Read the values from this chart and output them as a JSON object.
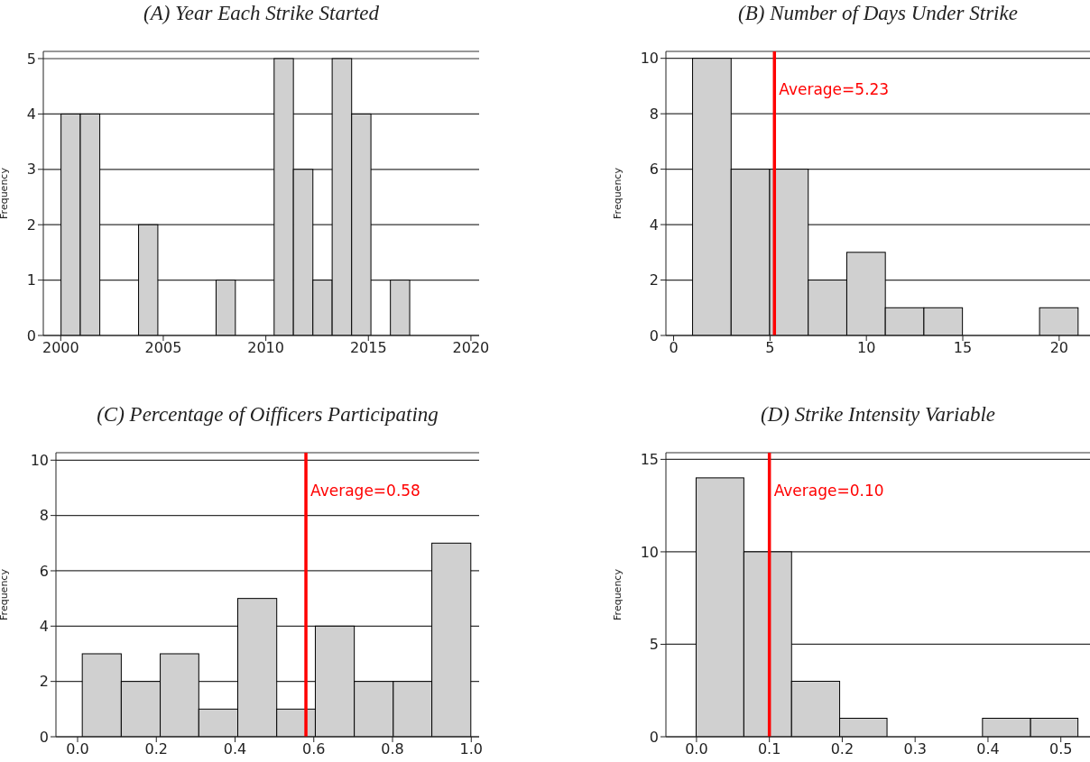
{
  "chart_data": [
    {
      "type": "histogram",
      "title": "(A) Year Each Strike Started",
      "ylabel": "Frequency",
      "color": "#d0d0d0",
      "bins": [
        2000,
        2000.94,
        2001.89,
        2002.83,
        2003.78,
        2004.72,
        2005.67,
        2006.61,
        2007.56,
        2008.5,
        2009.44,
        2010.39,
        2011.33,
        2012.28,
        2013.22,
        2014.17,
        2015.11,
        2016.06,
        2017
      ],
      "values": [
        4,
        4,
        0,
        0,
        2,
        0,
        0,
        0,
        1,
        0,
        0,
        5,
        3,
        1,
        5,
        4,
        0,
        1
      ],
      "xlim": [
        1999.15,
        2020.4
      ],
      "xticks": [
        2000,
        2005,
        2010,
        2015,
        2020
      ],
      "ylim": [
        0,
        5.13
      ],
      "yticks": [
        0,
        1,
        2,
        3,
        4,
        5
      ],
      "grid": "y"
    },
    {
      "type": "histogram",
      "title": "(B) Number of Days Under Strike",
      "ylabel": "Frequency",
      "color": "#d0d0d0",
      "bins": [
        1,
        3,
        5,
        7,
        9,
        11,
        13,
        15,
        17,
        19,
        21
      ],
      "values": [
        10,
        6,
        6,
        2,
        3,
        1,
        1,
        0,
        0,
        1
      ],
      "xlim": [
        -0.4,
        21.6
      ],
      "xticks": [
        0,
        5,
        10,
        15,
        20
      ],
      "ylim": [
        0,
        10.25
      ],
      "yticks": [
        0,
        2,
        4,
        6,
        8,
        10
      ],
      "grid": "y",
      "ref_lines": [
        {
          "axis": "x",
          "value": 5.23,
          "label": "Average=5.23",
          "color": "#ff0000"
        }
      ]
    },
    {
      "type": "histogram",
      "title": "(C) Percentage of Oifficers Participating",
      "ylabel": "Frequency",
      "color": "#d0d0d0",
      "bins": [
        0.013,
        0.112,
        0.211,
        0.309,
        0.408,
        0.507,
        0.605,
        0.704,
        0.803,
        0.901,
        1.0
      ],
      "values": [
        3,
        2,
        3,
        1,
        5,
        1,
        4,
        2,
        2,
        7
      ],
      "xlim": [
        -0.055,
        1.02
      ],
      "xticks": [
        {
          "value": 0,
          "label": "0.0"
        },
        {
          "value": 0.2,
          "label": "0.2"
        },
        {
          "value": 0.4,
          "label": "0.4"
        },
        {
          "value": 0.6,
          "label": "0.6"
        },
        {
          "value": 0.8,
          "label": "0.8"
        },
        {
          "value": 1,
          "label": "1.0"
        }
      ],
      "ylim": [
        0,
        10.27
      ],
      "yticks": [
        0,
        2,
        4,
        6,
        8,
        10
      ],
      "grid": "y",
      "ref_lines": [
        {
          "axis": "x",
          "value": 0.58,
          "label": "Average=0.58",
          "color": "#ff0000"
        }
      ]
    },
    {
      "type": "histogram",
      "title": "(D) Strike Intensity Variable",
      "ylabel": "Frequency",
      "color": "#d0d0d0",
      "bins": [
        0,
        0.0655,
        0.131,
        0.197,
        0.262,
        0.328,
        0.393,
        0.459,
        0.524
      ],
      "values": [
        14,
        10,
        3,
        1,
        0,
        0,
        1,
        1
      ],
      "xlim": [
        -0.042,
        0.54
      ],
      "xticks": [
        {
          "value": 0,
          "label": "0.0"
        },
        {
          "value": 0.1,
          "label": "0.1"
        },
        {
          "value": 0.2,
          "label": "0.2"
        },
        {
          "value": 0.3,
          "label": "0.3"
        },
        {
          "value": 0.4,
          "label": "0.4"
        },
        {
          "value": 0.5,
          "label": "0.5"
        }
      ],
      "ylim": [
        0,
        15.36
      ],
      "yticks": [
        0,
        5,
        10,
        15
      ],
      "grid": "y",
      "ref_lines": [
        {
          "axis": "x",
          "value": 0.1,
          "label": "Average=0.10",
          "color": "#ff0000"
        }
      ]
    }
  ]
}
